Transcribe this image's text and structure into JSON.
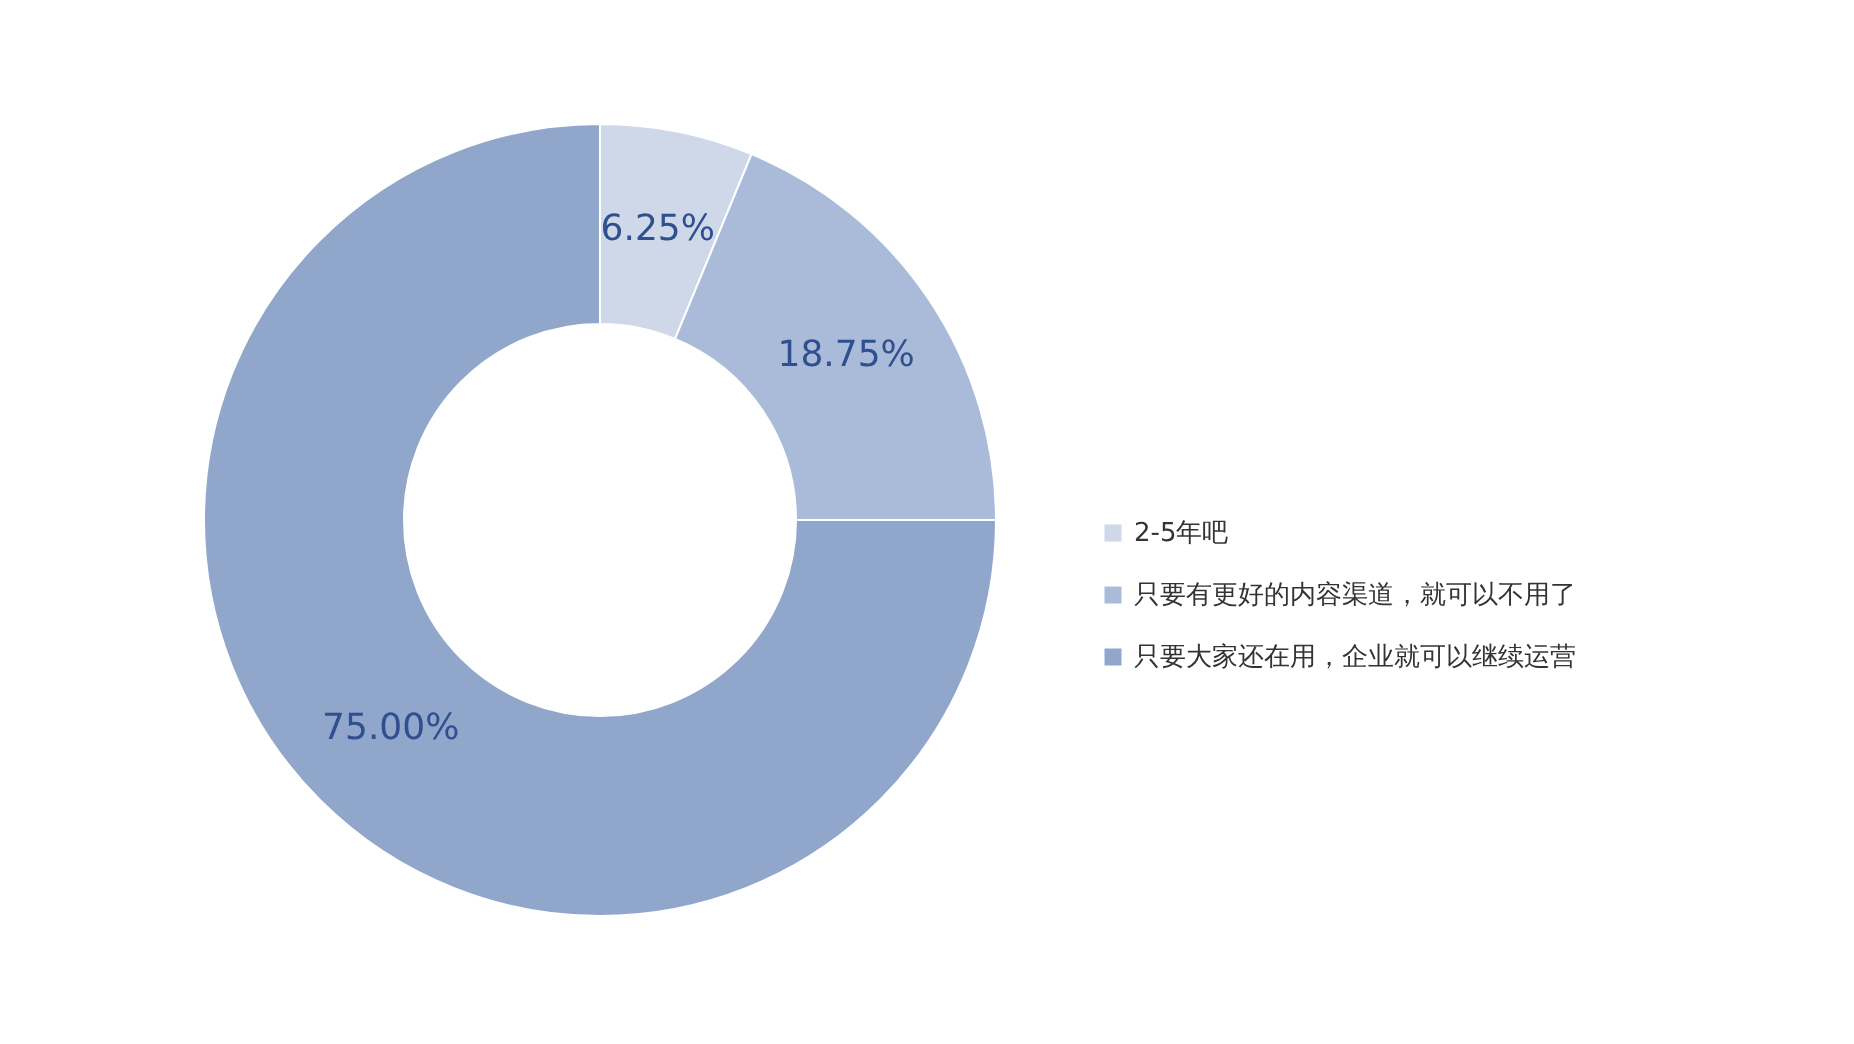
{
  "chart_data": {
    "type": "donut",
    "categories": [
      "2-5年吧",
      "只要有更好的内容渠道，就可以不用了",
      "只要大家还在用，企业就可以继续运营"
    ],
    "values": [
      6.25,
      18.75,
      75.0
    ],
    "value_labels": [
      "6.25%",
      "18.75%",
      "75.00%"
    ],
    "colors": [
      "#cfd8e9",
      "#aabbd9",
      "#91a6cb"
    ],
    "legend": "right"
  }
}
